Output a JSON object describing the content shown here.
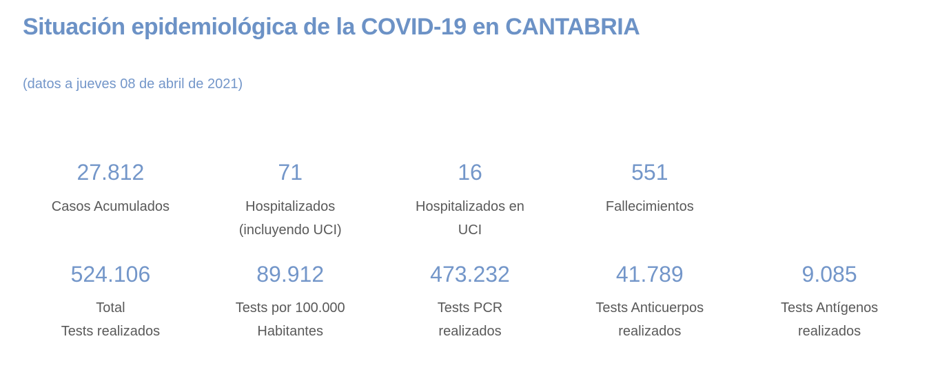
{
  "page": {
    "title": "Situación epidemiológica de la COVID-19 en CANTABRIA",
    "subtitle": "(datos a jueves 08 de abril de 2021)"
  },
  "colors": {
    "title_blue": "#6c92c6",
    "stat_blue": "#7396c9",
    "label_gray": "#595959",
    "background": "#ffffff"
  },
  "stats_row1": [
    {
      "value": "27.812",
      "label_lines": [
        "Casos Acumulados"
      ]
    },
    {
      "value": "71",
      "label_lines": [
        "Hospitalizados",
        "(incluyendo UCI)"
      ]
    },
    {
      "value": "16",
      "label_lines": [
        "Hospitalizados en",
        "UCI"
      ]
    },
    {
      "value": "551",
      "label_lines": [
        "Fallecimientos"
      ]
    }
  ],
  "stats_row2": [
    {
      "value": "524.106",
      "label_lines": [
        "Total",
        "Tests realizados"
      ]
    },
    {
      "value": "89.912",
      "label_lines": [
        "Tests por 100.000",
        "Habitantes"
      ]
    },
    {
      "value": "473.232",
      "label_lines": [
        "Tests PCR",
        "realizados"
      ]
    },
    {
      "value": "41.789",
      "label_lines": [
        "Tests Anticuerpos",
        "realizados"
      ]
    },
    {
      "value": "9.085",
      "label_lines": [
        "Tests Antígenos",
        "realizados"
      ]
    }
  ]
}
